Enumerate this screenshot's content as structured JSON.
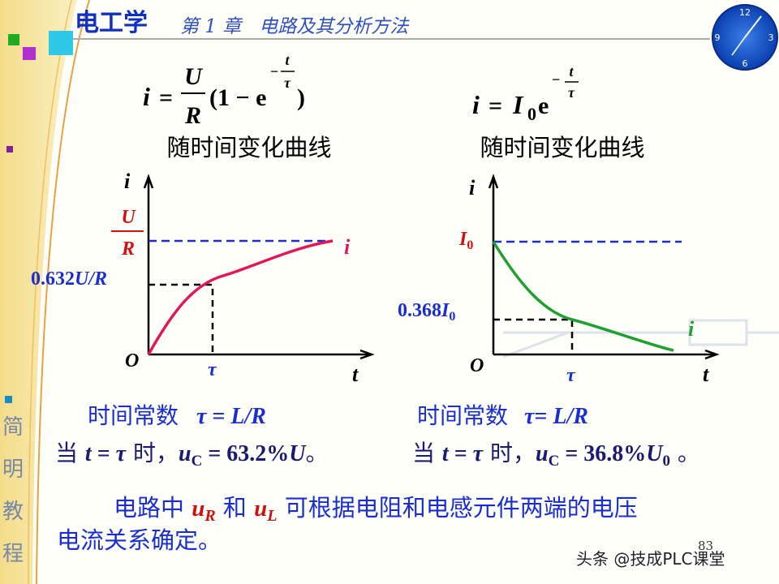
{
  "header": {
    "title": "电工学",
    "chapter": "第 1 章   电路及其分析方法"
  },
  "clock": {
    "numbers": [
      "12",
      "3",
      "6",
      "9"
    ]
  },
  "left": {
    "formula": {
      "lhs": "i",
      "eq": "=",
      "num": "U",
      "den": "R",
      "open": "(1 − e",
      "exp_sign": "−",
      "exp_num": "t",
      "exp_den": "τ",
      "close": ")"
    },
    "caption": "随时间变化曲线",
    "graph": {
      "y_axis": "i",
      "x_axis": "t",
      "origin": "O",
      "tau": "τ",
      "frac_num": "U",
      "frac_den": "R",
      "level": [
        "0.632",
        "U/R"
      ],
      "curve": "i"
    },
    "time_constant": [
      "时间常数",
      "τ",
      " = ",
      "L/R"
    ],
    "result": [
      "当 ",
      "t",
      " = ",
      "τ",
      " 时，",
      "u",
      "C",
      " = 63.2%",
      "U",
      "。"
    ]
  },
  "right": {
    "formula": {
      "lhs": "i",
      "eq": "=",
      "base": "I",
      "sub": "0",
      "e": "e",
      "exp_sign": "−",
      "exp_num": "t",
      "exp_den": "τ"
    },
    "caption": "随时间变化曲线",
    "graph": {
      "y_axis": "i",
      "x_axis": "t",
      "origin": "O",
      "tau": "τ",
      "start": [
        "I",
        "0"
      ],
      "level": [
        "0.368",
        "I",
        "0"
      ],
      "curve": "i"
    },
    "time_constant": [
      "时间常数",
      "τ",
      "= ",
      "L/R"
    ],
    "result": [
      "当 ",
      "t",
      " = ",
      "τ",
      " 时，",
      "u",
      "C",
      " = 36.8%",
      "U",
      "0",
      " 。"
    ]
  },
  "note": {
    "line1": [
      "电路中 ",
      "u",
      "R",
      " 和 ",
      "u",
      "L",
      " 可根据电阻和电感元件两端的电压"
    ],
    "line2": "电流关系确定。"
  },
  "sidebar": [
    "简",
    "明",
    "教",
    "程"
  ],
  "page_number": "83",
  "watermark": "头条 @技成PLC课堂"
}
